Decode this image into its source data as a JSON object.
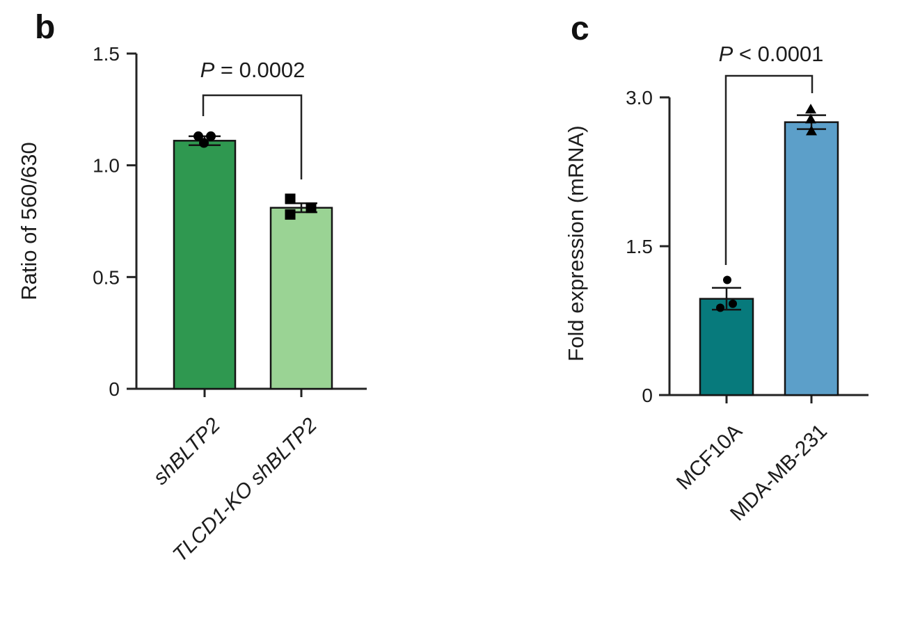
{
  "figure": {
    "background": "#ffffff",
    "axis_color": "#232323",
    "point_color": "#000000"
  },
  "chart_data": [
    {
      "type": "bar",
      "panel_label": "b",
      "p_value": "P = 0.0002",
      "ylabel": "Ratio of 560/630",
      "xlabel": "",
      "ylim": [
        0,
        1.5
      ],
      "yticks": [
        0,
        0.5,
        1.0,
        1.5
      ],
      "ytick_labels": [
        "0",
        "0.5",
        "1.0",
        "1.5"
      ],
      "categories": [
        "shBLTP2",
        "TLCD1-KO shBLTP2"
      ],
      "values": [
        1.11,
        0.81
      ],
      "errors": [
        0.02,
        0.02
      ],
      "points": [
        [
          1.13,
          1.13,
          1.1
        ],
        [
          0.85,
          0.81,
          0.78
        ]
      ],
      "point_shapes": [
        "circle",
        "square"
      ],
      "bar_colors": [
        "#2f9850",
        "#9ad394"
      ],
      "grid": false,
      "legend": "none"
    },
    {
      "type": "bar",
      "panel_label": "c",
      "p_value": "P < 0.0001",
      "ylabel": "Fold expression (mRNA)",
      "xlabel": "",
      "ylim": [
        0,
        3.0
      ],
      "yticks": [
        0,
        1.5,
        3.0
      ],
      "ytick_labels": [
        "0",
        "1.5",
        "3.0"
      ],
      "categories": [
        "MCF10A",
        "MDA-MB-231"
      ],
      "values": [
        0.97,
        2.75
      ],
      "errors": [
        0.11,
        0.07
      ],
      "points": [
        [
          1.16,
          0.88,
          0.92
        ],
        [
          2.88,
          2.78,
          2.66
        ]
      ],
      "point_shapes": [
        "circle",
        "triangle"
      ],
      "bar_colors": [
        "#077a7c",
        "#5c9fc9"
      ],
      "grid": false,
      "legend": "none"
    }
  ]
}
